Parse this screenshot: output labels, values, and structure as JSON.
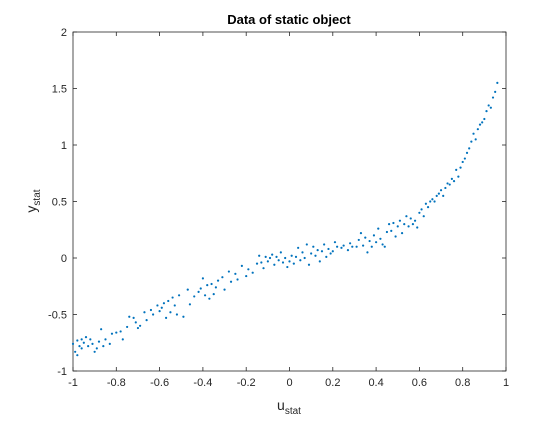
{
  "chart_data": {
    "type": "scatter",
    "title": "Data of static object",
    "xlabel": {
      "main": "u",
      "sub": "stat"
    },
    "ylabel": {
      "main": "y",
      "sub": "stat"
    },
    "xlim": [
      -1,
      1
    ],
    "ylim": [
      -1,
      2
    ],
    "xticks": [
      -1,
      -0.8,
      -0.6,
      -0.4,
      -0.2,
      0,
      0.2,
      0.4,
      0.6,
      0.8,
      1
    ],
    "xtick_labels": [
      "-1",
      "-0.8",
      "-0.6",
      "-0.4",
      "-0.2",
      "0",
      "0.2",
      "0.4",
      "0.6",
      "0.8",
      "1"
    ],
    "yticks": [
      -1,
      -0.5,
      0,
      0.5,
      1,
      1.5,
      2
    ],
    "ytick_labels": [
      "-1",
      "-0.5",
      "0",
      "0.5",
      "1",
      "1.5",
      "2"
    ],
    "grid": false,
    "series": [
      {
        "color": "#0072BD",
        "points": [
          [
            -1.0,
            -0.76
          ],
          [
            -0.99,
            -0.83
          ],
          [
            -0.98,
            -0.73
          ],
          [
            -0.98,
            -0.86
          ],
          [
            -0.97,
            -0.78
          ],
          [
            -0.96,
            -0.72
          ],
          [
            -0.96,
            -0.8
          ],
          [
            -0.95,
            -0.75
          ],
          [
            -0.94,
            -0.7
          ],
          [
            -0.93,
            -0.78
          ],
          [
            -0.92,
            -0.72
          ],
          [
            -0.91,
            -0.76
          ],
          [
            -0.9,
            -0.83
          ],
          [
            -0.89,
            -0.8
          ],
          [
            -0.88,
            -0.74
          ],
          [
            -0.87,
            -0.63
          ],
          [
            -0.86,
            -0.78
          ],
          [
            -0.85,
            -0.72
          ],
          [
            -0.83,
            -0.76
          ],
          [
            -0.82,
            -0.67
          ],
          [
            -0.8,
            -0.66
          ],
          [
            -0.78,
            -0.65
          ],
          [
            -0.77,
            -0.72
          ],
          [
            -0.75,
            -0.61
          ],
          [
            -0.74,
            -0.52
          ],
          [
            -0.72,
            -0.53
          ],
          [
            -0.71,
            -0.57
          ],
          [
            -0.7,
            -0.62
          ],
          [
            -0.69,
            -0.6
          ],
          [
            -0.67,
            -0.48
          ],
          [
            -0.66,
            -0.55
          ],
          [
            -0.64,
            -0.46
          ],
          [
            -0.63,
            -0.5
          ],
          [
            -0.61,
            -0.42
          ],
          [
            -0.6,
            -0.47
          ],
          [
            -0.59,
            -0.44
          ],
          [
            -0.58,
            -0.4
          ],
          [
            -0.57,
            -0.53
          ],
          [
            -0.56,
            -0.38
          ],
          [
            -0.55,
            -0.48
          ],
          [
            -0.54,
            -0.35
          ],
          [
            -0.53,
            -0.42
          ],
          [
            -0.52,
            -0.5
          ],
          [
            -0.51,
            -0.33
          ],
          [
            -0.49,
            -0.52
          ],
          [
            -0.47,
            -0.28
          ],
          [
            -0.46,
            -0.41
          ],
          [
            -0.44,
            -0.34
          ],
          [
            -0.42,
            -0.3
          ],
          [
            -0.41,
            -0.27
          ],
          [
            -0.4,
            -0.18
          ],
          [
            -0.39,
            -0.33
          ],
          [
            -0.38,
            -0.24
          ],
          [
            -0.37,
            -0.36
          ],
          [
            -0.36,
            -0.23
          ],
          [
            -0.35,
            -0.32
          ],
          [
            -0.34,
            -0.26
          ],
          [
            -0.33,
            -0.2
          ],
          [
            -0.31,
            -0.17
          ],
          [
            -0.3,
            -0.28
          ],
          [
            -0.28,
            -0.12
          ],
          [
            -0.27,
            -0.21
          ],
          [
            -0.25,
            -0.14
          ],
          [
            -0.24,
            -0.19
          ],
          [
            -0.22,
            -0.07
          ],
          [
            -0.2,
            -0.16
          ],
          [
            -0.19,
            -0.1
          ],
          [
            -0.17,
            -0.13
          ],
          [
            -0.15,
            -0.05
          ],
          [
            -0.14,
            0.02
          ],
          [
            -0.13,
            -0.04
          ],
          [
            -0.12,
            -0.09
          ],
          [
            -0.11,
            0.01
          ],
          [
            -0.1,
            -0.03
          ],
          [
            -0.09,
            0.0
          ],
          [
            -0.08,
            0.03
          ],
          [
            -0.07,
            -0.06
          ],
          [
            -0.06,
            0.01
          ],
          [
            -0.05,
            -0.02
          ],
          [
            -0.04,
            0.05
          ],
          [
            -0.03,
            -0.04
          ],
          [
            -0.02,
            0.0
          ],
          [
            -0.01,
            -0.08
          ],
          [
            0.0,
            -0.03
          ],
          [
            0.01,
            0.02
          ],
          [
            0.02,
            -0.05
          ],
          [
            0.03,
            0.01
          ],
          [
            0.04,
            0.09
          ],
          [
            0.05,
            -0.02
          ],
          [
            0.06,
            0.05
          ],
          [
            0.07,
            0.0
          ],
          [
            0.08,
            0.12
          ],
          [
            0.09,
            -0.06
          ],
          [
            0.1,
            0.04
          ],
          [
            0.11,
            0.1
          ],
          [
            0.12,
            0.02
          ],
          [
            0.13,
            0.07
          ],
          [
            0.14,
            -0.03
          ],
          [
            0.15,
            0.06
          ],
          [
            0.16,
            0.12
          ],
          [
            0.17,
            0.01
          ],
          [
            0.18,
            0.08
          ],
          [
            0.19,
            0.04
          ],
          [
            0.2,
            0.06
          ],
          [
            0.21,
            0.14
          ],
          [
            0.22,
            0.1
          ],
          [
            0.24,
            0.09
          ],
          [
            0.25,
            0.11
          ],
          [
            0.27,
            0.07
          ],
          [
            0.28,
            0.13
          ],
          [
            0.29,
            0.1
          ],
          [
            0.31,
            0.1
          ],
          [
            0.32,
            0.16
          ],
          [
            0.33,
            0.22
          ],
          [
            0.34,
            0.11
          ],
          [
            0.35,
            0.18
          ],
          [
            0.36,
            0.05
          ],
          [
            0.37,
            0.15
          ],
          [
            0.38,
            0.1
          ],
          [
            0.39,
            0.2
          ],
          [
            0.4,
            0.14
          ],
          [
            0.41,
            0.26
          ],
          [
            0.42,
            0.17
          ],
          [
            0.43,
            0.12
          ],
          [
            0.44,
            0.1
          ],
          [
            0.45,
            0.23
          ],
          [
            0.46,
            0.3
          ],
          [
            0.47,
            0.24
          ],
          [
            0.48,
            0.31
          ],
          [
            0.49,
            0.19
          ],
          [
            0.5,
            0.28
          ],
          [
            0.51,
            0.33
          ],
          [
            0.52,
            0.22
          ],
          [
            0.53,
            0.3
          ],
          [
            0.54,
            0.37
          ],
          [
            0.55,
            0.28
          ],
          [
            0.56,
            0.35
          ],
          [
            0.57,
            0.3
          ],
          [
            0.58,
            0.33
          ],
          [
            0.59,
            0.27
          ],
          [
            0.6,
            0.4
          ],
          [
            0.61,
            0.43
          ],
          [
            0.62,
            0.37
          ],
          [
            0.63,
            0.48
          ],
          [
            0.64,
            0.45
          ],
          [
            0.65,
            0.5
          ],
          [
            0.66,
            0.52
          ],
          [
            0.67,
            0.5
          ],
          [
            0.68,
            0.55
          ],
          [
            0.69,
            0.57
          ],
          [
            0.7,
            0.6
          ],
          [
            0.71,
            0.55
          ],
          [
            0.72,
            0.62
          ],
          [
            0.73,
            0.66
          ],
          [
            0.74,
            0.65
          ],
          [
            0.75,
            0.7
          ],
          [
            0.76,
            0.68
          ],
          [
            0.77,
            0.78
          ],
          [
            0.78,
            0.72
          ],
          [
            0.79,
            0.8
          ],
          [
            0.8,
            0.85
          ],
          [
            0.81,
            0.88
          ],
          [
            0.82,
            0.93
          ],
          [
            0.83,
            0.97
          ],
          [
            0.84,
            1.03
          ],
          [
            0.85,
            1.1
          ],
          [
            0.86,
            1.05
          ],
          [
            0.87,
            1.14
          ],
          [
            0.88,
            1.18
          ],
          [
            0.89,
            1.2
          ],
          [
            0.9,
            1.23
          ],
          [
            0.91,
            1.3
          ],
          [
            0.92,
            1.35
          ],
          [
            0.93,
            1.33
          ],
          [
            0.94,
            1.42
          ],
          [
            0.95,
            1.47
          ],
          [
            0.96,
            1.55
          ]
        ]
      }
    ]
  }
}
